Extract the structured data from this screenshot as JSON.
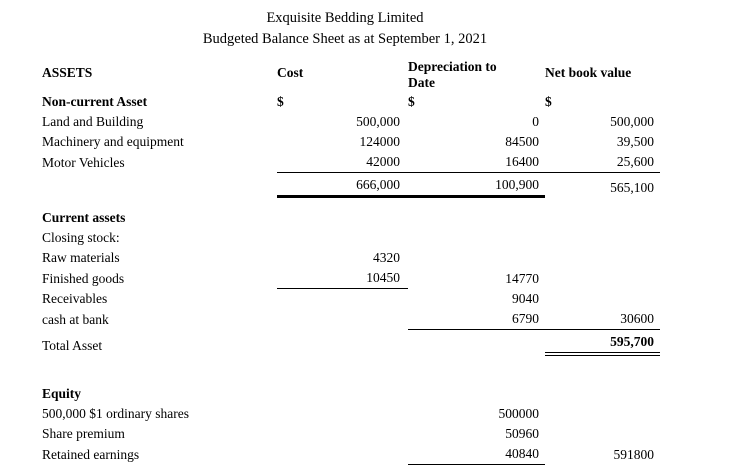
{
  "document": {
    "title": "Exquisite Bedding Limited",
    "subtitle": "Budgeted Balance Sheet as at September 1, 2021"
  },
  "header": {
    "assets": "ASSETS",
    "cost": "Cost",
    "depreciation": "Depreciation to Date",
    "net_book_value": "Net book value"
  },
  "currency_symbol": "$",
  "non_current": {
    "section_label": "Non-current Asset",
    "rows": [
      {
        "label": "Land and Building",
        "cost": "500,000",
        "depreciation": "0",
        "net_book_value": "500,000"
      },
      {
        "label": "Machinery and equipment",
        "cost": "124000",
        "depreciation": "84500",
        "net_book_value": "39,500"
      },
      {
        "label": "Motor Vehicles",
        "cost": "42000",
        "depreciation": "16400",
        "net_book_value": "25,600"
      }
    ],
    "total": {
      "cost": "666,000",
      "depreciation": "100,900",
      "net_book_value": "565,100"
    }
  },
  "current_assets": {
    "section_label": "Current assets",
    "closing_stock_label": "Closing stock:",
    "rows": [
      {
        "label": "Raw materials",
        "cost": "4320"
      },
      {
        "label": "Finished goods",
        "cost": "10450",
        "depreciation": "14770"
      },
      {
        "label": "Receivables",
        "depreciation": "9040"
      },
      {
        "label": "cash at bank",
        "depreciation": "6790",
        "net_book_value": "30600"
      }
    ],
    "total": {
      "label": "Total Asset",
      "net_book_value": "595,700"
    }
  },
  "equity": {
    "section_label": "Equity",
    "rows": [
      {
        "label": "500,000 $1 ordinary shares",
        "amount": "500000"
      },
      {
        "label": "Share premium",
        "amount": "50960"
      },
      {
        "label": "Retained earnings",
        "amount": "40840",
        "total": "591800"
      }
    ]
  },
  "colors": {
    "text": "#000000",
    "background": "#ffffff",
    "rule": "#000000"
  }
}
